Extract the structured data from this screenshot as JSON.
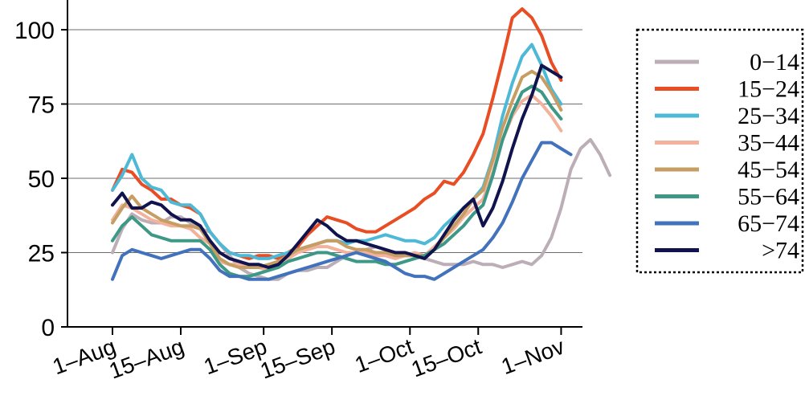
{
  "chart_data": {
    "type": "line",
    "title": "",
    "xlabel": "",
    "ylabel": "",
    "ylim": [
      0,
      110
    ],
    "yticks": [
      0,
      25,
      50,
      75,
      100
    ],
    "grid": "horizontal",
    "legend_position": "right",
    "legend_style": "dotted-box",
    "x_ticks": [
      "1–Aug",
      "15–Aug",
      "1–Sep",
      "15–Sep",
      "1–Oct",
      "15–Oct",
      "1–Nov"
    ],
    "x_tick_day_offsets": [
      0,
      14,
      31,
      45,
      61,
      75,
      92
    ],
    "x_start": "2020-08-01",
    "x_step_days": 2,
    "series": [
      {
        "name": "0−14",
        "color": "#bcaeb7",
        "values": [
          25,
          33,
          38,
          36,
          35,
          35,
          37,
          37,
          35,
          33,
          32,
          28,
          24,
          20,
          18,
          17,
          16,
          16,
          18,
          19,
          19,
          20,
          20,
          22,
          24,
          25,
          26,
          27,
          26,
          25,
          24,
          24,
          23,
          22,
          21,
          21,
          21,
          22,
          21,
          21,
          20,
          21,
          22,
          21,
          24,
          30,
          40,
          53,
          60,
          63,
          58,
          51
        ]
      },
      {
        "name": "15−24",
        "color": "#e84d24",
        "values": [
          46,
          53,
          52,
          48,
          46,
          43,
          43,
          41,
          40,
          38,
          32,
          28,
          25,
          24,
          23,
          24,
          24,
          23,
          25,
          27,
          31,
          34,
          37,
          36,
          35,
          33,
          32,
          32,
          34,
          36,
          38,
          40,
          43,
          45,
          49,
          48,
          52,
          58,
          65,
          77,
          90,
          104,
          107,
          104,
          98,
          89,
          83
        ]
      },
      {
        "name": "25−34",
        "color": "#4db9d6",
        "values": [
          46,
          51,
          58,
          50,
          47,
          46,
          42,
          41,
          41,
          38,
          32,
          28,
          25,
          24,
          24,
          23,
          23,
          24,
          25,
          26,
          27,
          28,
          29,
          29,
          28,
          29,
          29,
          30,
          31,
          30,
          29,
          29,
          28,
          30,
          34,
          37,
          40,
          43,
          47,
          57,
          71,
          82,
          91,
          95,
          88,
          80,
          75
        ]
      },
      {
        "name": "35−44",
        "color": "#f3b29b",
        "values": [
          36,
          41,
          40,
          38,
          36,
          35,
          34,
          34,
          33,
          30,
          28,
          22,
          21,
          21,
          20,
          20,
          19,
          21,
          23,
          25,
          26,
          27,
          27,
          26,
          25,
          25,
          25,
          24,
          24,
          23,
          24,
          25,
          24,
          27,
          30,
          33,
          37,
          40,
          43,
          52,
          63,
          71,
          76,
          78,
          75,
          71,
          66
        ]
      },
      {
        "name": "45−54",
        "color": "#c69d63",
        "values": [
          35,
          40,
          44,
          40,
          38,
          36,
          35,
          34,
          34,
          33,
          28,
          23,
          21,
          20,
          20,
          20,
          21,
          22,
          24,
          26,
          27,
          28,
          29,
          29,
          27,
          26,
          26,
          25,
          25,
          24,
          24,
          24,
          24,
          26,
          30,
          34,
          38,
          43,
          46,
          56,
          67,
          76,
          84,
          86,
          84,
          79,
          73
        ]
      },
      {
        "name": "55−64",
        "color": "#3d9986",
        "values": [
          29,
          34,
          37,
          34,
          31,
          30,
          29,
          29,
          29,
          29,
          26,
          21,
          18,
          17,
          17,
          18,
          19,
          20,
          22,
          23,
          24,
          25,
          25,
          24,
          23,
          22,
          22,
          22,
          21,
          21,
          22,
          23,
          24,
          26,
          28,
          31,
          34,
          38,
          41,
          51,
          63,
          72,
          79,
          81,
          79,
          74,
          70
        ]
      },
      {
        "name": "65−74",
        "color": "#4272bb",
        "values": [
          16,
          24,
          26,
          25,
          24,
          23,
          24,
          25,
          26,
          26,
          23,
          19,
          17,
          17,
          16,
          16,
          16,
          17,
          18,
          19,
          20,
          21,
          22,
          23,
          24,
          25,
          24,
          23,
          22,
          20,
          18,
          17,
          17,
          16,
          18,
          20,
          22,
          24,
          26,
          30,
          35,
          42,
          50,
          56,
          62,
          62,
          60,
          58
        ]
      },
      {
        "name": ">74",
        "color": "#10134d",
        "values": [
          41,
          45,
          40,
          40,
          42,
          41,
          38,
          36,
          36,
          34,
          29,
          25,
          23,
          22,
          21,
          21,
          20,
          21,
          24,
          28,
          32,
          36,
          34,
          31,
          29,
          29,
          28,
          27,
          26,
          25,
          25,
          24,
          23,
          26,
          31,
          36,
          40,
          43,
          34,
          40,
          49,
          60,
          70,
          78,
          88,
          86,
          84
        ]
      }
    ]
  }
}
